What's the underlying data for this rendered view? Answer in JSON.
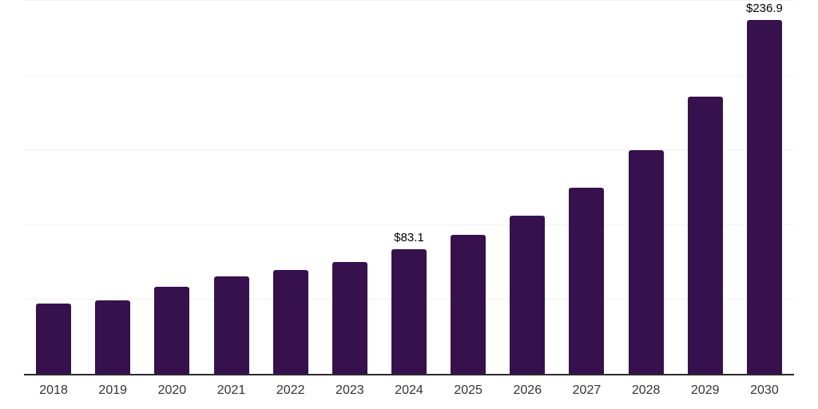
{
  "chart_data": {
    "type": "bar",
    "title": "",
    "xlabel": "",
    "ylabel": "",
    "categories": [
      "2018",
      "2019",
      "2020",
      "2021",
      "2022",
      "2023",
      "2024",
      "2025",
      "2026",
      "2027",
      "2028",
      "2029",
      "2030"
    ],
    "values": [
      47.2,
      49.4,
      58.1,
      65.2,
      69.5,
      75.0,
      83.1,
      92.9,
      105.9,
      124.4,
      149.8,
      185.2,
      236.9
    ],
    "point_labels": [
      "",
      "",
      "",
      "",
      "",
      "",
      "$83.1",
      "",
      "",
      "",
      "",
      "",
      "$236.9"
    ],
    "ylim": [
      0,
      250
    ],
    "gridline_step": 50,
    "grid": "horizontal-only",
    "legend": "none",
    "y_axis_ticks_visible": false,
    "colors": {
      "bar": "#36114D",
      "axis_line": "#2b2b2b",
      "gridline": "#f2f2f2",
      "x_label_text": "#333333",
      "value_label_text": "#000000",
      "background": "#ffffff"
    }
  }
}
